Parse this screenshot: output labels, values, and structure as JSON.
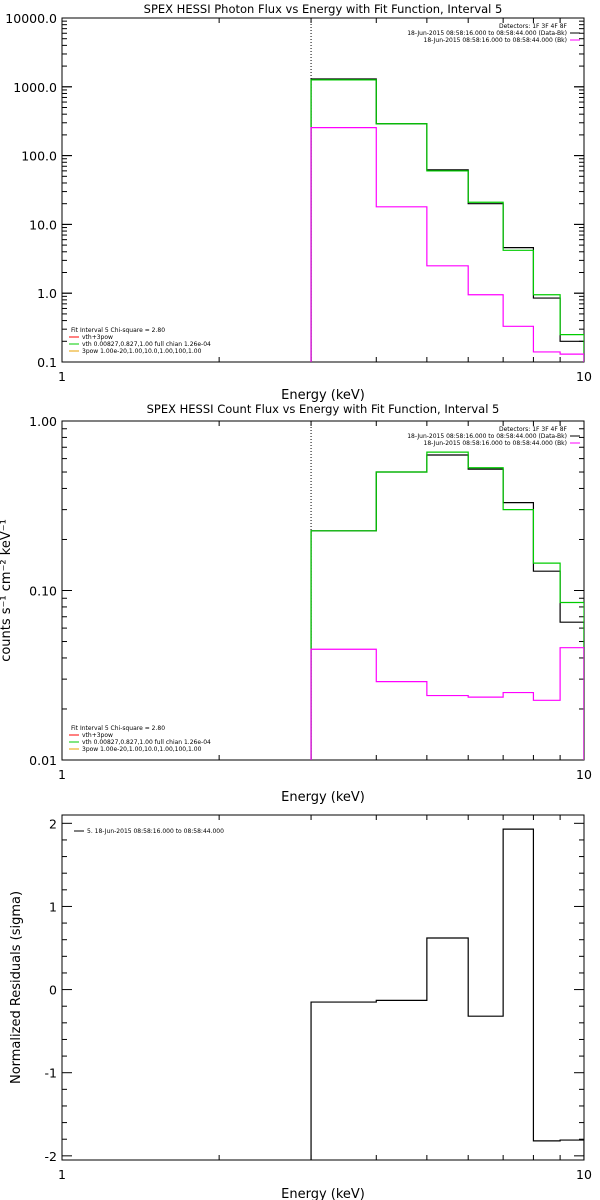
{
  "chart_data": [
    {
      "type": "line",
      "title": "SPEX HESSI Photon Flux vs Energy with Fit Function, Interval 5",
      "xlabel": "Energy (keV)",
      "ylabel": "",
      "xscale": "log",
      "yscale": "log",
      "xlim": [
        1,
        10
      ],
      "ylim": [
        0.1,
        10000
      ],
      "x_ticks": [
        {
          "v": 1,
          "label": "1"
        },
        {
          "v": 10,
          "label": "10"
        }
      ],
      "y_ticks": [
        {
          "v": 0.1,
          "label": "0.1"
        },
        {
          "v": 1,
          "label": "1.0"
        },
        {
          "v": 10,
          "label": "10.0"
        },
        {
          "v": 100,
          "label": "100.0"
        },
        {
          "v": 1000,
          "label": "1000.0"
        },
        {
          "v": 10000,
          "label": "10000.0"
        }
      ],
      "marker_line": 3.0,
      "legend_right": {
        "position": "top-right",
        "lines": [
          {
            "text": "Detectors: 1F 3F 4F 8F",
            "color": ""
          },
          {
            "text": "18-Jun-2015 08:58:16.000 to 08:58:44.000 (Data-Bk)",
            "color": "#000000"
          },
          {
            "text": "18-Jun-2015 08:58:16.000 to 08:58:44.000 (Bk)",
            "color": "#ff00ff"
          }
        ]
      },
      "legend_left": {
        "position": "bottom-left",
        "lines": [
          {
            "text": "Fit Interval 5   Chi-square = 2.80",
            "color": ""
          },
          {
            "text": "vth+3pow",
            "color": "#ff0000"
          },
          {
            "text": "vth 0.00827,0.827,1.00  full chian 1.26e-04",
            "color": "#00cc00"
          },
          {
            "text": "3pow 1.00e-20,1.00,10.0,1.00,100,1.00",
            "color": "#e8a000"
          }
        ]
      },
      "series": [
        {
          "color": "#000000",
          "edges": [
            3,
            4,
            5,
            6,
            7,
            8,
            9,
            10
          ],
          "values": [
            1300,
            290,
            62,
            20,
            4.6,
            0.85,
            0.2
          ]
        },
        {
          "color": "#00cc00",
          "edges": [
            3,
            4,
            5,
            6,
            7,
            8,
            9,
            10
          ],
          "values": [
            1260,
            290,
            60,
            21,
            4.2,
            0.95,
            0.25
          ]
        },
        {
          "color": "#ff00ff",
          "edges": [
            3,
            4,
            5,
            6,
            7,
            8,
            9,
            10
          ],
          "values": [
            255,
            18,
            2.5,
            0.95,
            0.33,
            0.14,
            0.13
          ]
        }
      ]
    },
    {
      "type": "line",
      "title": "SPEX HESSI Count Flux vs Energy with Fit Function, Interval 5",
      "xlabel": "Energy (keV)",
      "ylabel": "counts s⁻¹ cm⁻² keV⁻¹",
      "xscale": "log",
      "yscale": "log",
      "xlim": [
        1,
        10
      ],
      "ylim": [
        0.01,
        1
      ],
      "x_ticks": [
        {
          "v": 1,
          "label": "1"
        },
        {
          "v": 10,
          "label": "10"
        }
      ],
      "y_ticks": [
        {
          "v": 0.01,
          "label": "0.01"
        },
        {
          "v": 0.1,
          "label": "0.10"
        },
        {
          "v": 1,
          "label": "1.00"
        }
      ],
      "marker_line": 3.0,
      "legend_right": {
        "position": "top-right",
        "lines": [
          {
            "text": "Detectors: 1F 3F 4F 8F",
            "color": ""
          },
          {
            "text": "18-Jun-2015 08:58:16.000 to 08:58:44.000 (Data-Bk)",
            "color": "#000000"
          },
          {
            "text": "18-Jun-2015 08:58:16.000 to 08:58:44.000 (Bk)",
            "color": "#ff00ff"
          }
        ]
      },
      "legend_left": {
        "position": "bottom-left",
        "lines": [
          {
            "text": "Fit Interval 5   Chi-square = 2.80",
            "color": ""
          },
          {
            "text": "vth+3pow",
            "color": "#ff0000"
          },
          {
            "text": "vth 0.00827,0.827,1.00  full chian 1.26e-04",
            "color": "#00cc00"
          },
          {
            "text": "3pow 1.00e-20,1.00,10.0,1.00,100,1.00",
            "color": "#e8a000"
          }
        ]
      },
      "series": [
        {
          "color": "#000000",
          "edges": [
            3,
            4,
            5,
            6,
            7,
            8,
            9,
            10
          ],
          "values": [
            0.225,
            0.5,
            0.63,
            0.52,
            0.33,
            0.13,
            0.065
          ]
        },
        {
          "color": "#00cc00",
          "edges": [
            3,
            4,
            5,
            6,
            7,
            8,
            9,
            10
          ],
          "values": [
            0.225,
            0.5,
            0.655,
            0.53,
            0.3,
            0.145,
            0.085
          ]
        },
        {
          "color": "#ff00ff",
          "edges": [
            3,
            4,
            5,
            6,
            7,
            8,
            9,
            10
          ],
          "values": [
            0.045,
            0.029,
            0.024,
            0.0235,
            0.025,
            0.0225,
            0.046
          ]
        }
      ]
    },
    {
      "type": "line",
      "title": "",
      "xlabel": "Energy (keV)",
      "ylabel": "Normalized Residuals (sigma)",
      "xscale": "log",
      "yscale": "linear",
      "xlim": [
        1,
        10
      ],
      "ylim": [
        -2.05,
        2.1
      ],
      "x_ticks": [
        {
          "v": 1,
          "label": "1"
        },
        {
          "v": 10,
          "label": "10"
        }
      ],
      "y_ticks": [
        {
          "v": -2,
          "label": "-2"
        },
        {
          "v": -1,
          "label": "-1"
        },
        {
          "v": 0,
          "label": "0"
        },
        {
          "v": 1,
          "label": "1"
        },
        {
          "v": 2,
          "label": "2"
        }
      ],
      "legend_right": null,
      "legend_left": {
        "position": "top-left",
        "lines": [
          {
            "text": "5. 18-Jun-2015 08:58:16.000 to 08:58:44.000",
            "color": "#000000"
          }
        ]
      },
      "series": [
        {
          "color": "#000000",
          "edges": [
            3,
            4,
            5,
            6,
            7,
            8,
            9,
            10
          ],
          "values": [
            -0.15,
            -0.13,
            0.62,
            -0.32,
            1.93,
            -1.82,
            -1.81
          ]
        }
      ]
    }
  ]
}
